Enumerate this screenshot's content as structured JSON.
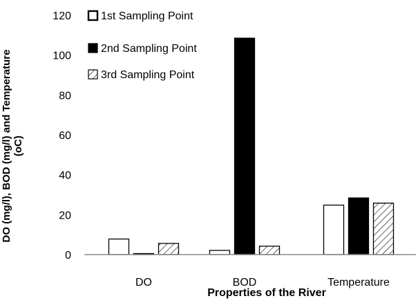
{
  "chart_data": {
    "type": "bar",
    "categories": [
      "DO",
      "BOD",
      "Temperature"
    ],
    "series": [
      {
        "name": "1st Sampling Point",
        "values": [
          7.8,
          2.1,
          24.8
        ],
        "fill": "#ffffff",
        "pattern": "hollow"
      },
      {
        "name": "2nd Sampling Point",
        "values": [
          0.5,
          108.5,
          28.4
        ],
        "fill": "#000000",
        "pattern": "solid"
      },
      {
        "name": "3rd Sampling Point",
        "values": [
          5.6,
          4.2,
          25.8
        ],
        "fill": "#ffffff",
        "pattern": "diagonal-hatch"
      }
    ],
    "xlabel": "Properties of the River",
    "ylabel": "DO (mg/l), BOD (mg/l) and Temperature (oC)",
    "ylim": [
      0,
      120
    ],
    "yticks": [
      0,
      20,
      40,
      60,
      80,
      100,
      120
    ],
    "grid": false,
    "legend_position": "top-left"
  }
}
